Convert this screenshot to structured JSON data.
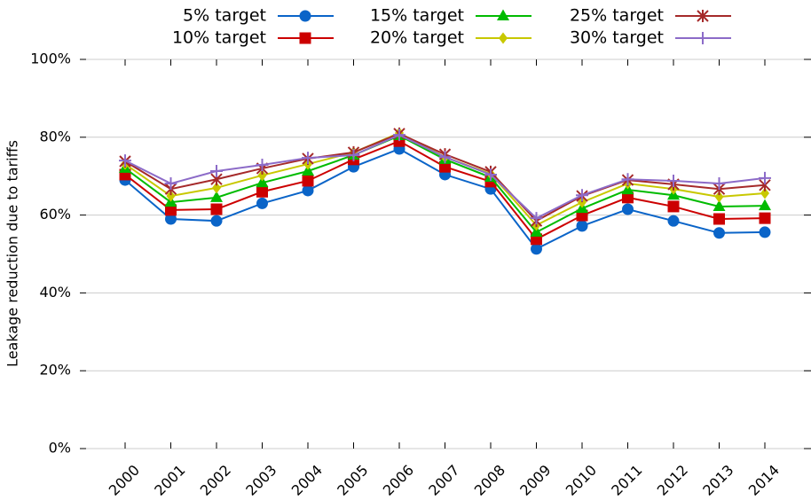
{
  "chart_data": {
    "type": "line",
    "y_label": "Leakage reduction due to tariffs",
    "categories": [
      "2000",
      "2001",
      "2002",
      "2003",
      "2004",
      "2005",
      "2006",
      "2007",
      "2008",
      "2009",
      "2010",
      "2011",
      "2012",
      "2013",
      "2014"
    ],
    "ylim": [
      0,
      100
    ],
    "yticks": [
      {
        "value": 0,
        "label": "0%"
      },
      {
        "value": 20,
        "label": "20%"
      },
      {
        "value": 40,
        "label": "40%"
      },
      {
        "value": 60,
        "label": "60%"
      },
      {
        "value": 80,
        "label": "80%"
      },
      {
        "value": 100,
        "label": "100%"
      }
    ],
    "grid": true,
    "legend": "top",
    "series": [
      {
        "name": "5% target",
        "color": "#0a64c8",
        "marker": "circle",
        "values": [
          69,
          59,
          58.5,
          63,
          66.3,
          72.4,
          77,
          70.4,
          66.7,
          51.3,
          57.2,
          61.5,
          58.5,
          55.4,
          55.6
        ]
      },
      {
        "name": "10% target",
        "color": "#cc0000",
        "marker": "square",
        "values": [
          70.4,
          61.3,
          61.5,
          66,
          68.8,
          74.3,
          79,
          72.4,
          68.6,
          53.8,
          59.9,
          64.5,
          62.2,
          59,
          59.2
        ]
      },
      {
        "name": "15% target",
        "color": "#00bb00",
        "marker": "triangle",
        "values": [
          72,
          63.3,
          64.5,
          68.3,
          71.3,
          75.4,
          80.4,
          74.3,
          69.7,
          55.6,
          61.7,
          66.5,
          65.1,
          62.2,
          62.4
        ]
      },
      {
        "name": "20% target",
        "color": "#c8c800",
        "marker": "diamond",
        "values": [
          73.1,
          64.9,
          67,
          70.2,
          73.1,
          76.1,
          81.1,
          74.9,
          70.6,
          57.4,
          63.3,
          68.1,
          66.7,
          64.7,
          65.6
        ]
      },
      {
        "name": "25% target",
        "color": "#a52a2a",
        "marker": "star",
        "values": [
          73.8,
          66.7,
          69.2,
          72,
          74.5,
          76.1,
          80.9,
          75.6,
          71.1,
          58.5,
          64.9,
          69,
          67.9,
          66.7,
          67.7
        ]
      },
      {
        "name": "30% target",
        "color": "#8c6bc8",
        "marker": "plus",
        "values": [
          74,
          68.1,
          71.3,
          72.9,
          74.7,
          75.4,
          80.6,
          74.9,
          70.4,
          59.2,
          65.1,
          69.2,
          68.8,
          68.1,
          69.5
        ]
      }
    ]
  }
}
